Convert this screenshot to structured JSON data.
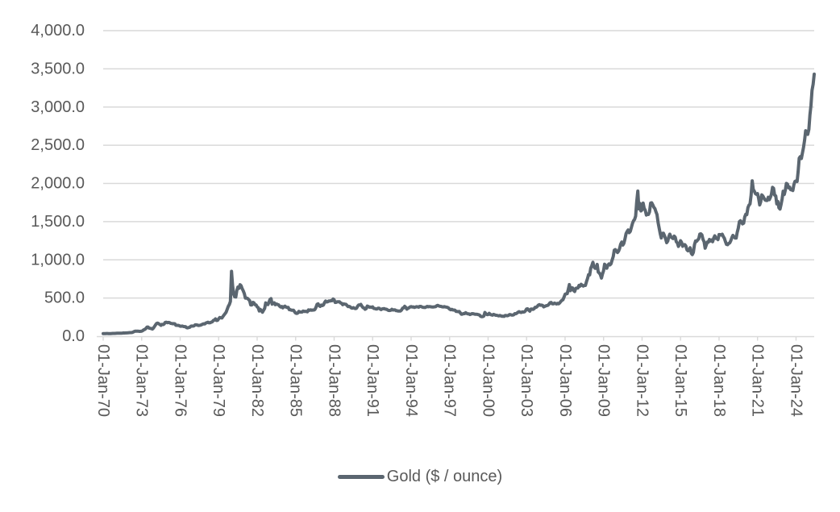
{
  "chart_data": {
    "type": "line",
    "title": "",
    "legend": {
      "label": "Gold ($ / ounce)",
      "position": "bottom"
    },
    "grid": {
      "horizontal": true,
      "vertical": false,
      "color": "#d9d9d9"
    },
    "text_color": "#595959",
    "background": "#ffffff",
    "y": {
      "min": 0,
      "max": 4000,
      "tick_step": 500,
      "tick_labels": [
        "0.0",
        "500.0",
        "1,000.0",
        "1,500.0",
        "2,000.0",
        "2,500.0",
        "3,000.0",
        "3,500.0",
        "4,000.0"
      ]
    },
    "x": {
      "start": "01-Jan-70",
      "end": "mid-2025",
      "frequency": "monthly",
      "months_per_tick": 36,
      "tick_labels": [
        "01-Jan-70",
        "01-Jan-73",
        "01-Jan-76",
        "01-Jan-79",
        "01-Jan-82",
        "01-Jan-85",
        "01-Jan-88",
        "01-Jan-91",
        "01-Jan-94",
        "01-Jan-97",
        "01-Jan-00",
        "01-Jan-03",
        "01-Jan-06",
        "01-Jan-09",
        "01-Jan-12",
        "01-Jan-15",
        "01-Jan-18",
        "01-Jan-21",
        "01-Jan-24"
      ]
    },
    "series": [
      {
        "name": "Gold ($ / ounce)",
        "color": "#5b6670",
        "values": [
          35,
          35,
          35,
          36,
          36,
          35,
          35,
          35,
          36,
          37,
          37,
          37,
          38,
          39,
          39,
          39,
          40,
          40,
          41,
          43,
          42,
          43,
          43,
          44,
          46,
          48,
          48,
          49,
          54,
          62,
          66,
          67,
          65,
          65,
          63,
          64,
          65,
          74,
          84,
          90,
          102,
          120,
          120,
          106,
          103,
          100,
          94,
          107,
          129,
          150,
          168,
          172,
          163,
          154,
          143,
          155,
          152,
          159,
          181,
          184,
          176,
          180,
          178,
          169,
          167,
          164,
          165,
          163,
          144,
          143,
          142,
          139,
          131,
          131,
          133,
          128,
          126,
          126,
          112,
          110,
          114,
          117,
          131,
          134,
          132,
          136,
          149,
          149,
          147,
          140,
          143,
          145,
          150,
          158,
          163,
          160,
          173,
          178,
          184,
          175,
          176,
          184,
          189,
          206,
          212,
          227,
          206,
          208,
          227,
          245,
          242,
          239,
          258,
          279,
          295,
          315,
          355,
          392,
          415,
          455,
          850,
          665,
          554,
          517,
          514,
          600,
          644,
          627,
          674,
          661,
          623,
          595,
          557,
          499,
          499,
          495,
          480,
          465,
          409,
          410,
          443,
          437,
          413,
          410,
          384,
          374,
          330,
          350,
          334,
          315,
          339,
          364,
          436,
          422,
          414,
          444,
          481,
          492,
          420,
          433,
          438,
          413,
          422,
          416,
          412,
          394,
          382,
          389,
          371,
          386,
          394,
          381,
          377,
          378,
          347,
          348,
          341,
          340,
          341,
          320,
          303,
          299,
          304,
          325,
          317,
          317,
          317,
          329,
          324,
          326,
          325,
          320,
          345,
          339,
          346,
          340,
          343,
          343,
          349,
          377,
          418,
          424,
          399,
          391,
          408,
          401,
          408,
          439,
          461,
          449,
          451,
          461,
          460,
          466,
          464,
          487,
          477,
          442,
          444,
          452,
          451,
          451,
          437,
          431,
          413,
          423,
          420,
          418,
          404,
          387,
          390,
          384,
          371,
          367,
          375,
          365,
          362,
          367,
          394,
          409,
          410,
          417,
          393,
          375,
          369,
          352,
          362,
          395,
          389,
          380,
          382,
          378,
          384,
          364,
          363,
          358,
          357,
          367,
          367,
          356,
          348,
          358,
          360,
          361,
          354,
          354,
          344,
          338,
          337,
          340,
          353,
          343,
          345,
          344,
          335,
          334,
          329,
          329,
          330,
          342,
          367,
          372,
          392,
          378,
          355,
          364,
          373,
          383,
          387,
          382,
          384,
          377,
          381,
          386,
          385,
          380,
          391,
          390,
          384,
          379,
          378,
          376,
          382,
          391,
          385,
          388,
          386,
          384,
          383,
          383,
          385,
          387,
          400,
          404,
          396,
          392,
          391,
          385,
          383,
          387,
          383,
          381,
          378,
          369,
          355,
          346,
          352,
          344,
          343,
          341,
          324,
          324,
          322,
          324,
          306,
          288,
          289,
          297,
          296,
          308,
          299,
          292,
          293,
          284,
          289,
          296,
          294,
          291,
          287,
          287,
          286,
          282,
          277,
          261,
          256,
          257,
          264,
          311,
          293,
          283,
          284,
          300,
          286,
          280,
          275,
          286,
          282,
          274,
          274,
          270,
          266,
          272,
          266,
          262,
          263,
          260,
          272,
          270,
          268,
          272,
          284,
          283,
          276,
          276,
          281,
          295,
          294,
          303,
          314,
          322,
          313,
          310,
          319,
          317,
          319,
          333,
          357,
          359,
          341,
          328,
          355,
          356,
          351,
          360,
          379,
          379,
          390,
          407,
          414,
          405,
          407,
          403,
          384,
          392,
          398,
          401,
          405,
          421,
          439,
          442,
          424,
          423,
          434,
          429,
          422,
          431,
          424,
          437,
          456,
          470,
          477,
          510,
          550,
          555,
          557,
          611,
          676,
          596,
          634,
          632,
          598,
          586,
          627,
          630,
          631,
          665,
          655,
          680,
          667,
          656,
          665,
          665,
          713,
          755,
          806,
          804,
          890,
          922,
          968,
          910,
          889,
          889,
          940,
          839,
          829,
          807,
          761,
          816,
          858,
          943,
          924,
          890,
          929,
          946,
          934,
          949,
          996,
          1043,
          1127,
          1135,
          1118,
          1095,
          1113,
          1149,
          1205,
          1233,
          1193,
          1216,
          1271,
          1342,
          1370,
          1391,
          1356,
          1373,
          1424,
          1474,
          1512,
          1529,
          1573,
          1756,
          1900,
          1666,
          1739,
          1640,
          1656,
          1743,
          1674,
          1650,
          1586,
          1597,
          1594,
          1626,
          1744,
          1747,
          1721,
          1688,
          1671,
          1628,
          1593,
          1485,
          1414,
          1343,
          1287,
          1347,
          1348,
          1316,
          1276,
          1225,
          1244,
          1301,
          1336,
          1299,
          1289,
          1279,
          1311,
          1296,
          1237,
          1222,
          1176,
          1201,
          1251,
          1227,
          1178,
          1198,
          1199,
          1181,
          1130,
          1118,
          1125,
          1159,
          1086,
          1068,
          1098,
          1200,
          1246,
          1242,
          1260,
          1276,
          1337,
          1340,
          1327,
          1267,
          1238,
          1152,
          1192,
          1234,
          1231,
          1266,
          1246,
          1260,
          1237,
          1283,
          1315,
          1280,
          1282,
          1264,
          1331,
          1330,
          1325,
          1335,
          1303,
          1281,
          1238,
          1202,
          1198,
          1215,
          1221,
          1250,
          1292,
          1320,
          1301,
          1286,
          1284,
          1359,
          1413,
          1500,
          1511,
          1495,
          1471,
          1480,
          1561,
          1597,
          1592,
          1683,
          1716,
          1732,
          1843,
          2035,
          1922,
          1900,
          1866,
          1858,
          1867,
          1808,
          1718,
          1762,
          1850,
          1835,
          1807,
          1784,
          1777,
          1777,
          1820,
          1787,
          1817,
          1856,
          1948,
          1937,
          1848,
          1836,
          1733,
          1765,
          1681,
          1664,
          1725,
          1797,
          1898,
          1855,
          1913,
          2000,
          1992,
          1943,
          1951,
          1918,
          1916,
          1907,
          1984,
          2026,
          2034,
          2025,
          2158,
          2330,
          2351,
          2326,
          2398,
          2470,
          2568,
          2690,
          2652,
          2643,
          2708,
          2897,
          3022,
          3218,
          3300,
          3430
        ]
      }
    ]
  }
}
